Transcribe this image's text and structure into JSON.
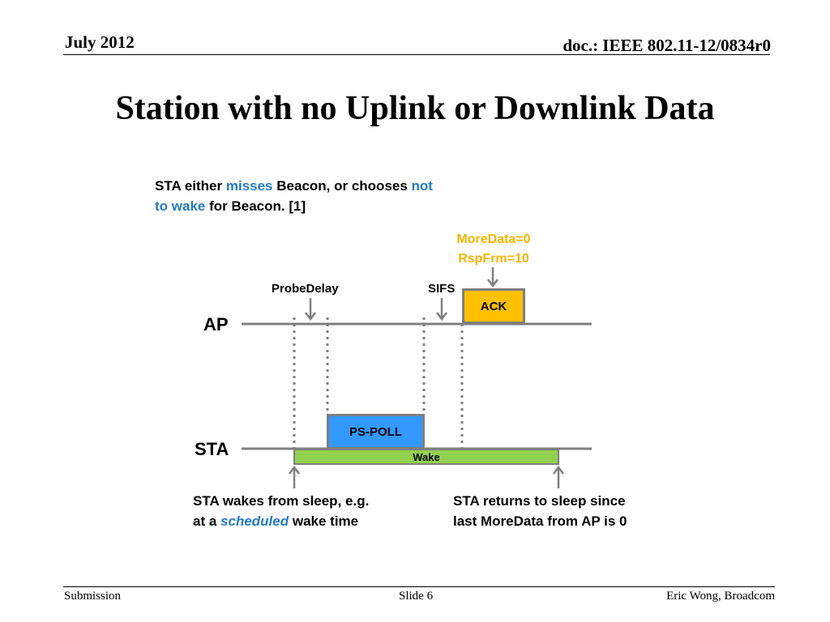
{
  "header": {
    "date": "July 2012",
    "doc": "doc.: IEEE 802.11-12/0834r0"
  },
  "title": "Station with no Uplink or Downlink Data",
  "diagram": {
    "caption_top": {
      "line1_a": "STA either ",
      "line1_b": "misses",
      "line1_c": " Beacon, or chooses ",
      "line1_d": "not",
      "line2_a": "to wake",
      "line2_b": " for Beacon. [1]"
    },
    "ack_meta": {
      "line1": "MoreData=0",
      "line2": "RspFrm=10"
    },
    "labels": {
      "probe_delay": "ProbeDelay",
      "sifs": "SIFS",
      "ap": "AP",
      "sta": "STA"
    },
    "frames": {
      "ack": "ACK",
      "ps_poll": "PS-POLL",
      "wake": "Wake"
    },
    "caption_wake": {
      "line1": "STA wakes from sleep, e.g.",
      "line2_a": "at a ",
      "line2_b": "scheduled",
      "line2_c": " wake time"
    },
    "caption_sleep": {
      "line1": "STA returns to sleep since",
      "line2": "last MoreData from AP is 0"
    },
    "colors": {
      "accent_blue": "#2379c6",
      "ack_fill": "#ffc000",
      "ps_poll_fill": "#3399ff",
      "wake_fill": "#92d050",
      "meta_text": "#f2b500",
      "line_gray": "#7f7f7f"
    }
  },
  "footer": {
    "left": "Submission",
    "center": "Slide 6",
    "right": "Eric Wong, Broadcom"
  }
}
